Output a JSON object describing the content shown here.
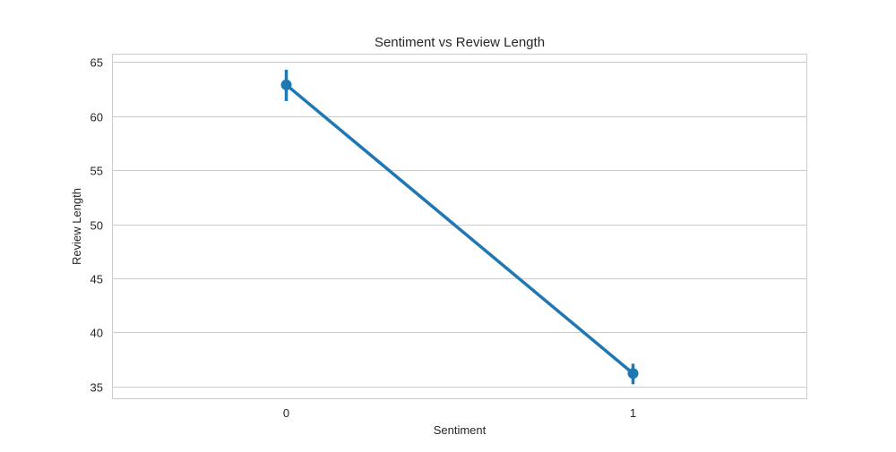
{
  "chart_data": {
    "type": "line",
    "title": "Sentiment vs Review Length",
    "xlabel": "Sentiment",
    "ylabel": "Review Length",
    "categories": [
      "0",
      "1"
    ],
    "series": [
      {
        "values": [
          62.9,
          36.2
        ],
        "error_bars": [
          [
            61.4,
            64.3
          ],
          [
            35.2,
            37.1
          ]
        ],
        "color": "#1f77b4"
      }
    ],
    "ylim": [
      33.9,
      65.7
    ],
    "yticks": [
      35,
      40,
      45,
      50,
      55,
      60,
      65
    ],
    "grid": true
  }
}
